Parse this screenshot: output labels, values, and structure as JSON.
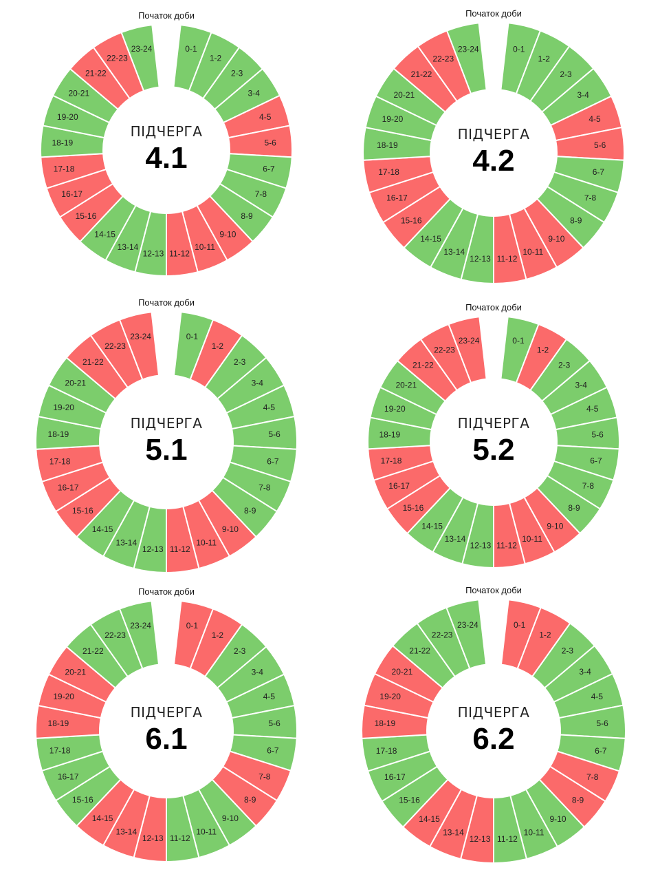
{
  "colors": {
    "on": "#7ccd6c",
    "off": "#fb6a6a",
    "separator": "#ffffff"
  },
  "slot_labels": [
    "0-1",
    "1-2",
    "2-3",
    "3-4",
    "4-5",
    "5-6",
    "6-7",
    "7-8",
    "8-9",
    "9-10",
    "10-11",
    "11-12",
    "12-13",
    "13-14",
    "14-15",
    "15-16",
    "16-17",
    "17-18",
    "18-19",
    "19-20",
    "20-21",
    "21-22",
    "22-23",
    "23-24"
  ],
  "chart_data": [
    {
      "type": "donut",
      "start_label": "Початок доби",
      "center_title": "ПІДЧЕРГА",
      "center_number": "4.1",
      "legend_mapping": {
        "1": "on",
        "0": "off"
      },
      "status": [
        1,
        1,
        1,
        1,
        0,
        0,
        1,
        1,
        1,
        0,
        0,
        0,
        1,
        1,
        1,
        0,
        0,
        0,
        1,
        1,
        1,
        0,
        0,
        1
      ]
    },
    {
      "type": "donut",
      "start_label": "Початок доби",
      "center_title": "ПІДЧЕРГА",
      "center_number": "4.2",
      "legend_mapping": {
        "1": "on",
        "0": "off"
      },
      "status": [
        1,
        1,
        1,
        1,
        0,
        0,
        1,
        1,
        1,
        0,
        0,
        0,
        1,
        1,
        1,
        0,
        0,
        0,
        1,
        1,
        1,
        0,
        0,
        1
      ]
    },
    {
      "type": "donut",
      "start_label": "Початок доби",
      "center_title": "ПІДЧЕРГА",
      "center_number": "5.1",
      "legend_mapping": {
        "1": "on",
        "0": "off"
      },
      "status": [
        1,
        0,
        1,
        1,
        1,
        1,
        1,
        1,
        1,
        0,
        0,
        0,
        1,
        1,
        1,
        0,
        0,
        0,
        1,
        1,
        1,
        0,
        0,
        0
      ]
    },
    {
      "type": "donut",
      "start_label": "Початок доби",
      "center_title": "ПІДЧЕРГА",
      "center_number": "5.2",
      "legend_mapping": {
        "1": "on",
        "0": "off"
      },
      "status": [
        1,
        0,
        1,
        1,
        1,
        1,
        1,
        1,
        1,
        0,
        0,
        0,
        1,
        1,
        1,
        0,
        0,
        0,
        1,
        1,
        1,
        0,
        0,
        0
      ]
    },
    {
      "type": "donut",
      "start_label": "Початок доби",
      "center_title": "ПІДЧЕРГА",
      "center_number": "6.1",
      "legend_mapping": {
        "1": "on",
        "0": "off"
      },
      "status": [
        0,
        0,
        1,
        1,
        1,
        1,
        1,
        0,
        0,
        1,
        1,
        1,
        0,
        0,
        0,
        1,
        1,
        1,
        0,
        0,
        0,
        1,
        1,
        1
      ]
    },
    {
      "type": "donut",
      "start_label": "Початок доби",
      "center_title": "ПІДЧЕРГА",
      "center_number": "6.2",
      "legend_mapping": {
        "1": "on",
        "0": "off"
      },
      "status": [
        0,
        0,
        1,
        1,
        1,
        1,
        1,
        0,
        0,
        1,
        1,
        1,
        0,
        0,
        0,
        1,
        1,
        1,
        0,
        0,
        0,
        1,
        1,
        1
      ]
    }
  ]
}
